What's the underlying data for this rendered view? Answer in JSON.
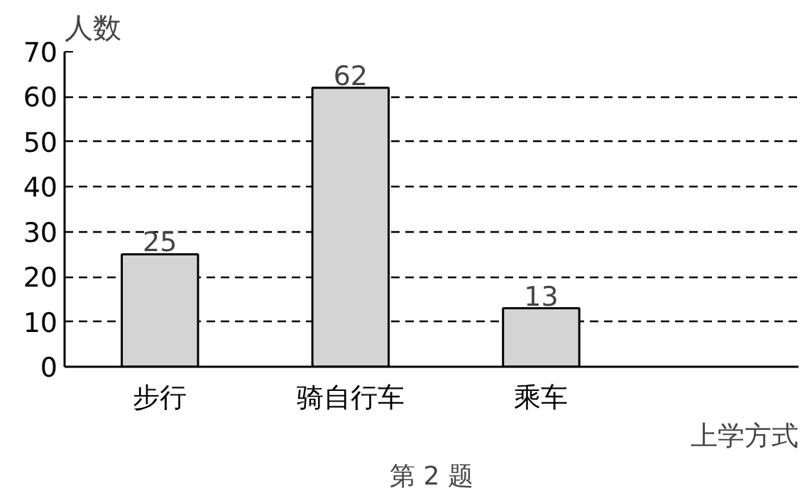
{
  "chart_data": {
    "type": "bar",
    "categories": [
      "步行",
      "骑自行车",
      "乘车"
    ],
    "values": [
      25,
      62,
      13
    ],
    "color": "#d4d4d4",
    "ylim": [
      0,
      70
    ],
    "yticks": [
      0,
      10,
      20,
      30,
      40,
      50,
      60,
      70
    ],
    "ylabel": "人数",
    "xlabel": "上学方式",
    "grid": "y",
    "data_labels": true,
    "annotations": [
      "第 2 题"
    ]
  }
}
